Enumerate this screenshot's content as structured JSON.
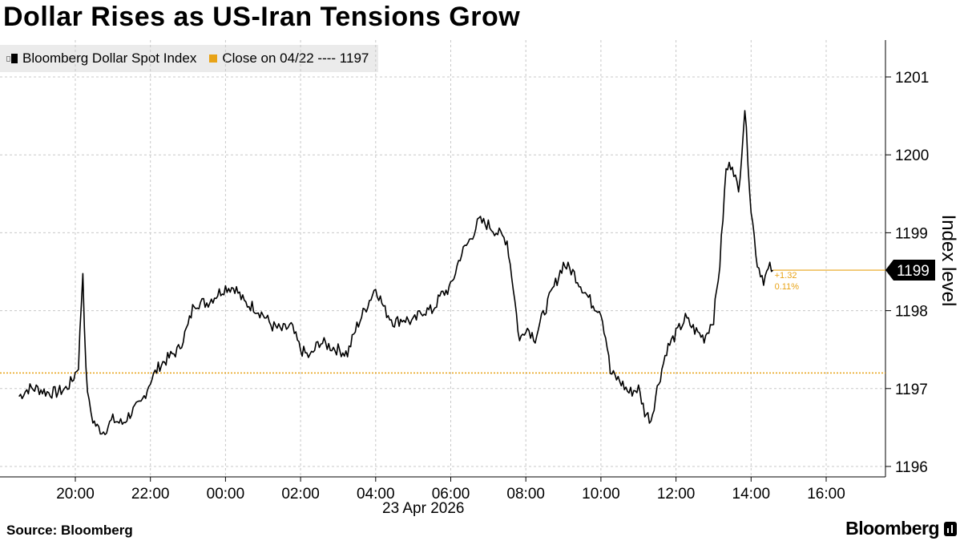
{
  "chart_data": {
    "type": "line",
    "title": "Dollar Rises as US-Iran Tensions Grow",
    "ylabel": "Index level",
    "date_label": "23 Apr 2026",
    "source": "Source: Bloomberg",
    "brand": "Bloomberg",
    "legend": [
      {
        "label": "Bloomberg Dollar Spot Index",
        "color": "#000000",
        "icon": "candlestick-icon"
      },
      {
        "label": "Close on 04/22 ---- 1197",
        "color": "#e8a317",
        "icon": "square-icon"
      }
    ],
    "x_unit": "hour",
    "x_range": [
      18.55,
      17.7
    ],
    "x_ticks": [
      "20:00",
      "22:00",
      "00:00",
      "02:00",
      "04:00",
      "06:00",
      "08:00",
      "10:00",
      "12:00",
      "14:00",
      "16:00"
    ],
    "ylim": [
      1195.9,
      1201.45
    ],
    "y_ticks": [
      "1196",
      "1197",
      "1198",
      "1199",
      "1200",
      "1201"
    ],
    "grid": true,
    "reference_line": {
      "label": "Close on 04/22",
      "value": 1197.2,
      "color": "#e8a317"
    },
    "last_value": {
      "label": "1199",
      "value": 1198.52,
      "change": "+1.32",
      "change_pct": "0.11%"
    },
    "series": [
      {
        "name": "Bloomberg Dollar Spot Index",
        "color": "#000000",
        "points": [
          [
            "18:30",
            1196.9
          ],
          [
            "18:45",
            1197.0
          ],
          [
            "19:00",
            1197.0
          ],
          [
            "19:15",
            1196.95
          ],
          [
            "19:30",
            1196.95
          ],
          [
            "19:45",
            1197.0
          ],
          [
            "19:55",
            1197.1
          ],
          [
            "20:05",
            1197.3
          ],
          [
            "20:12",
            1198.5
          ],
          [
            "20:17",
            1197.2
          ],
          [
            "20:22",
            1196.8
          ],
          [
            "20:28",
            1196.6
          ],
          [
            "20:35",
            1196.5
          ],
          [
            "20:45",
            1196.45
          ],
          [
            "21:00",
            1196.6
          ],
          [
            "21:15",
            1196.55
          ],
          [
            "21:30",
            1196.7
          ],
          [
            "21:45",
            1196.8
          ],
          [
            "22:00",
            1197.1
          ],
          [
            "22:15",
            1197.3
          ],
          [
            "22:30",
            1197.4
          ],
          [
            "22:45",
            1197.5
          ],
          [
            "23:00",
            1197.8
          ],
          [
            "23:10",
            1198.1
          ],
          [
            "23:30",
            1198.1
          ],
          [
            "23:45",
            1198.2
          ],
          [
            "00:00",
            1198.3
          ],
          [
            "00:15",
            1198.3
          ],
          [
            "00:30",
            1198.1
          ],
          [
            "00:45",
            1198.05
          ],
          [
            "01:00",
            1197.95
          ],
          [
            "01:15",
            1197.8
          ],
          [
            "01:30",
            1197.75
          ],
          [
            "01:45",
            1197.8
          ],
          [
            "02:00",
            1197.5
          ],
          [
            "02:15",
            1197.4
          ],
          [
            "02:30",
            1197.6
          ],
          [
            "02:45",
            1197.55
          ],
          [
            "03:00",
            1197.5
          ],
          [
            "03:15",
            1197.45
          ],
          [
            "03:30",
            1197.8
          ],
          [
            "03:45",
            1198.05
          ],
          [
            "04:00",
            1198.3
          ],
          [
            "04:15",
            1198.0
          ],
          [
            "04:30",
            1197.85
          ],
          [
            "04:45",
            1197.9
          ],
          [
            "05:00",
            1197.85
          ],
          [
            "05:15",
            1198.0
          ],
          [
            "05:30",
            1198.0
          ],
          [
            "05:45",
            1198.2
          ],
          [
            "06:00",
            1198.3
          ],
          [
            "06:15",
            1198.7
          ],
          [
            "06:30",
            1198.9
          ],
          [
            "06:45",
            1199.15
          ],
          [
            "07:00",
            1199.1
          ],
          [
            "07:15",
            1199.0
          ],
          [
            "07:30",
            1198.9
          ],
          [
            "07:40",
            1198.3
          ],
          [
            "07:50",
            1197.6
          ],
          [
            "08:00",
            1197.8
          ],
          [
            "08:15",
            1197.65
          ],
          [
            "08:30",
            1198.0
          ],
          [
            "08:45",
            1198.3
          ],
          [
            "09:00",
            1198.6
          ],
          [
            "09:15",
            1198.5
          ],
          [
            "09:30",
            1198.3
          ],
          [
            "09:45",
            1198.1
          ],
          [
            "10:00",
            1198.0
          ],
          [
            "10:10",
            1197.55
          ],
          [
            "10:15",
            1197.2
          ],
          [
            "10:30",
            1197.1
          ],
          [
            "10:45",
            1196.95
          ],
          [
            "11:00",
            1197.0
          ],
          [
            "11:10",
            1196.7
          ],
          [
            "11:20",
            1196.6
          ],
          [
            "11:30",
            1197.0
          ],
          [
            "11:45",
            1197.5
          ],
          [
            "12:00",
            1197.7
          ],
          [
            "12:15",
            1197.9
          ],
          [
            "12:30",
            1197.75
          ],
          [
            "12:45",
            1197.65
          ],
          [
            "13:00",
            1197.9
          ],
          [
            "13:10",
            1198.6
          ],
          [
            "13:20",
            1199.8
          ],
          [
            "13:30",
            1199.9
          ],
          [
            "13:40",
            1199.5
          ],
          [
            "13:50",
            1200.6
          ],
          [
            "14:00",
            1199.3
          ],
          [
            "14:10",
            1198.6
          ],
          [
            "14:20",
            1198.4
          ],
          [
            "14:30",
            1198.55
          ],
          [
            "14:35",
            1198.52
          ]
        ]
      }
    ]
  }
}
